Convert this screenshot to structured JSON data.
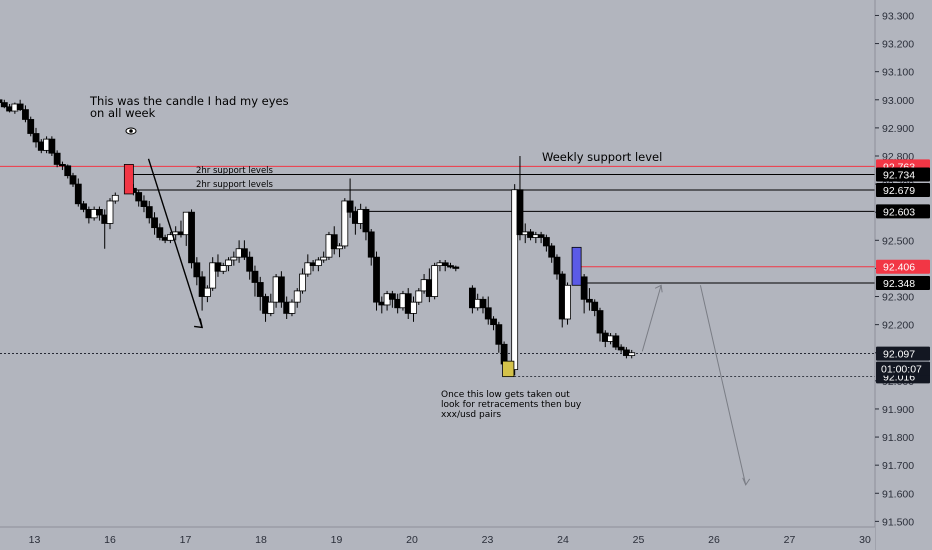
{
  "chart_data": {
    "type": "candlestick",
    "y_ticks": [
      "93.300",
      "93.200",
      "93.100",
      "93.000",
      "92.900",
      "92.800",
      "92.700",
      "92.600",
      "92.500",
      "92.400",
      "92.300",
      "92.200",
      "92.100",
      "92.000",
      "91.900",
      "91.800",
      "91.700",
      "91.600",
      "91.500"
    ],
    "y_tick_values": [
      93.3,
      93.2,
      93.1,
      93.0,
      92.9,
      92.8,
      92.7,
      92.6,
      92.5,
      92.4,
      92.3,
      92.2,
      92.1,
      92.0,
      91.9,
      91.8,
      91.7,
      91.6,
      91.5
    ],
    "ylim": [
      91.48,
      93.355
    ],
    "x_ticks": [
      "13",
      "16",
      "17",
      "18",
      "19",
      "20",
      "23",
      "24",
      "25",
      "26",
      "27",
      "30"
    ],
    "x_tick_values": [
      -1.0,
      0,
      1,
      2,
      3,
      4,
      5,
      6,
      7,
      8,
      9,
      10
    ],
    "xlim": [
      -1.5,
      10.1
    ],
    "candles": [
      [
        -1.47,
        93.0,
        93.02,
        92.985,
        92.99
      ],
      [
        -1.4,
        92.99,
        93.0,
        92.97,
        92.975
      ],
      [
        -1.33,
        92.975,
        92.985,
        92.955,
        92.96
      ],
      [
        -1.26,
        92.96,
        92.99,
        92.95,
        92.985
      ],
      [
        -1.19,
        92.985,
        93.0,
        92.96,
        92.965
      ],
      [
        -1.12,
        92.965,
        92.98,
        92.92,
        92.93
      ],
      [
        -1.05,
        92.93,
        92.94,
        92.87,
        92.88
      ],
      [
        -0.98,
        92.88,
        92.9,
        92.83,
        92.85
      ],
      [
        -0.91,
        92.85,
        92.86,
        92.81,
        92.82
      ],
      [
        -0.84,
        92.82,
        92.87,
        92.81,
        92.86
      ],
      [
        -0.77,
        92.86,
        92.87,
        92.8,
        92.81
      ],
      [
        -0.7,
        92.81,
        92.82,
        92.76,
        92.77
      ],
      [
        -0.63,
        92.77,
        92.78,
        92.75,
        92.765
      ],
      [
        -0.56,
        92.765,
        92.77,
        92.72,
        92.73
      ],
      [
        -0.49,
        92.73,
        92.74,
        92.69,
        92.7
      ],
      [
        -0.42,
        92.7,
        92.72,
        92.62,
        92.63
      ],
      [
        -0.35,
        92.63,
        92.64,
        92.6,
        92.61
      ],
      [
        -0.28,
        92.61,
        92.62,
        92.56,
        92.58
      ],
      [
        -0.21,
        92.58,
        92.62,
        92.57,
        92.61
      ],
      [
        -0.14,
        92.61,
        92.62,
        92.57,
        92.59
      ],
      [
        -0.07,
        92.59,
        92.61,
        92.47,
        92.56
      ],
      [
        0.0,
        92.56,
        92.65,
        92.54,
        92.64
      ],
      [
        0.07,
        92.64,
        92.67,
        92.63,
        92.66
      ],
      [
        0.24,
        92.685,
        92.765,
        92.67,
        92.765
      ],
      [
        0.31,
        92.685,
        92.7,
        92.66,
        92.67
      ],
      [
        0.38,
        92.67,
        92.68,
        92.62,
        92.64
      ],
      [
        0.45,
        92.64,
        92.66,
        92.6,
        92.62
      ],
      [
        0.52,
        92.62,
        92.64,
        92.56,
        92.58
      ],
      [
        0.59,
        92.58,
        92.6,
        92.52,
        92.545
      ],
      [
        0.66,
        92.545,
        92.56,
        92.5,
        92.51
      ],
      [
        0.73,
        92.51,
        92.52,
        92.49,
        92.5
      ],
      [
        0.8,
        92.5,
        92.53,
        92.49,
        92.52
      ],
      [
        0.87,
        92.52,
        92.55,
        92.5,
        92.53
      ],
      [
        0.94,
        92.53,
        92.57,
        92.51,
        92.52
      ],
      [
        1.01,
        92.52,
        92.6,
        92.48,
        92.6
      ],
      [
        1.08,
        92.6,
        92.61,
        92.4,
        92.42
      ],
      [
        1.15,
        92.42,
        92.44,
        92.34,
        92.37
      ],
      [
        1.22,
        92.37,
        92.39,
        92.25,
        92.3
      ],
      [
        1.29,
        92.3,
        92.34,
        92.28,
        92.33
      ],
      [
        1.36,
        92.33,
        92.44,
        92.32,
        92.42
      ],
      [
        1.43,
        92.42,
        92.45,
        92.37,
        92.39
      ],
      [
        1.5,
        92.39,
        92.42,
        92.38,
        92.41
      ],
      [
        1.57,
        92.41,
        92.44,
        92.39,
        92.43
      ],
      [
        1.64,
        92.43,
        92.46,
        92.41,
        92.44
      ],
      [
        1.71,
        92.44,
        92.5,
        92.42,
        92.47
      ],
      [
        1.78,
        92.47,
        92.5,
        92.43,
        92.44
      ],
      [
        1.85,
        92.44,
        92.46,
        92.36,
        92.39
      ],
      [
        1.92,
        92.39,
        92.41,
        92.3,
        92.35
      ],
      [
        1.99,
        92.35,
        92.37,
        92.25,
        92.3
      ],
      [
        2.06,
        92.3,
        92.31,
        92.21,
        92.24
      ],
      [
        2.13,
        92.24,
        92.31,
        92.23,
        92.28
      ],
      [
        2.2,
        92.28,
        92.38,
        92.26,
        92.37
      ],
      [
        2.27,
        92.37,
        92.39,
        92.26,
        92.28
      ],
      [
        2.34,
        92.28,
        92.3,
        92.22,
        92.24
      ],
      [
        2.41,
        92.24,
        92.29,
        92.23,
        92.28
      ],
      [
        2.48,
        92.28,
        92.33,
        92.26,
        92.32
      ],
      [
        2.55,
        92.32,
        92.4,
        92.31,
        92.38
      ],
      [
        2.62,
        92.38,
        92.45,
        92.37,
        92.42
      ],
      [
        2.69,
        92.42,
        92.43,
        92.39,
        92.41
      ],
      [
        2.76,
        92.41,
        92.44,
        92.39,
        92.43
      ],
      [
        2.83,
        92.43,
        92.46,
        92.42,
        92.44
      ],
      [
        2.9,
        92.44,
        92.53,
        92.43,
        92.52
      ],
      [
        2.97,
        92.52,
        92.55,
        92.45,
        92.47
      ],
      [
        3.04,
        92.47,
        92.49,
        92.44,
        92.48
      ],
      [
        3.11,
        92.48,
        92.65,
        92.47,
        92.64
      ],
      [
        3.18,
        92.64,
        92.72,
        92.58,
        92.6
      ],
      [
        3.25,
        92.6,
        92.62,
        92.52,
        92.56
      ],
      [
        3.32,
        92.56,
        92.63,
        92.54,
        92.61
      ],
      [
        3.39,
        92.61,
        92.62,
        92.5,
        92.53
      ],
      [
        3.46,
        92.53,
        92.54,
        92.41,
        92.44
      ],
      [
        3.53,
        92.44,
        92.46,
        92.25,
        92.28
      ],
      [
        3.6,
        92.28,
        92.3,
        92.24,
        92.27
      ],
      [
        3.67,
        92.27,
        92.32,
        92.25,
        92.31
      ],
      [
        3.74,
        92.31,
        92.32,
        92.26,
        92.29
      ],
      [
        3.81,
        92.29,
        92.31,
        92.24,
        92.26
      ],
      [
        3.88,
        92.26,
        92.32,
        92.25,
        92.31
      ],
      [
        3.95,
        92.31,
        92.33,
        92.22,
        92.24
      ],
      [
        4.02,
        92.24,
        92.3,
        92.21,
        92.28
      ],
      [
        4.09,
        92.28,
        92.33,
        92.27,
        92.32
      ],
      [
        4.16,
        92.32,
        92.38,
        92.31,
        92.36
      ],
      [
        4.23,
        92.36,
        92.4,
        92.28,
        92.3
      ],
      [
        4.3,
        92.3,
        92.42,
        92.29,
        92.41
      ],
      [
        4.37,
        92.41,
        92.43,
        92.39,
        92.42
      ],
      [
        4.44,
        92.42,
        92.43,
        92.39,
        92.41
      ],
      [
        4.51,
        92.41,
        92.42,
        92.4,
        92.405
      ],
      [
        4.58,
        92.405,
        92.41,
        92.39,
        92.4
      ],
      [
        4.8,
        92.33,
        92.34,
        92.24,
        92.26
      ],
      [
        4.87,
        92.26,
        92.31,
        92.25,
        92.29
      ],
      [
        4.94,
        92.29,
        92.3,
        92.24,
        92.26
      ],
      [
        5.01,
        92.26,
        92.3,
        92.2,
        92.22
      ],
      [
        5.08,
        92.22,
        92.23,
        92.18,
        92.2
      ],
      [
        5.15,
        92.2,
        92.21,
        92.1,
        92.13
      ],
      [
        5.22,
        92.13,
        92.14,
        92.04,
        92.06
      ],
      [
        5.29,
        92.06,
        92.07,
        92.02,
        92.04
      ],
      [
        5.36,
        92.04,
        92.7,
        92.02,
        92.68
      ],
      [
        5.43,
        92.68,
        92.8,
        92.5,
        92.52
      ],
      [
        5.5,
        92.52,
        92.56,
        92.49,
        92.53
      ],
      [
        5.57,
        92.53,
        92.54,
        92.5,
        92.51
      ],
      [
        5.64,
        92.51,
        92.53,
        92.49,
        92.52
      ],
      [
        5.71,
        92.52,
        92.53,
        92.49,
        92.51
      ],
      [
        5.78,
        92.51,
        92.52,
        92.46,
        92.48
      ],
      [
        5.85,
        92.48,
        92.49,
        92.42,
        92.44
      ],
      [
        5.92,
        92.44,
        92.45,
        92.36,
        92.38
      ],
      [
        5.99,
        92.38,
        92.39,
        92.19,
        92.22
      ],
      [
        6.06,
        92.22,
        92.35,
        92.2,
        92.34
      ],
      [
        6.18,
        92.35,
        92.465,
        92.34,
        92.465
      ],
      [
        6.28,
        92.37,
        92.38,
        92.24,
        92.29
      ],
      [
        6.35,
        92.29,
        92.33,
        92.25,
        92.28
      ],
      [
        6.42,
        92.28,
        92.29,
        92.23,
        92.25
      ],
      [
        6.49,
        92.25,
        92.26,
        92.14,
        92.17
      ],
      [
        6.56,
        92.17,
        92.18,
        92.12,
        92.14
      ],
      [
        6.63,
        92.14,
        92.17,
        92.13,
        92.16
      ],
      [
        6.7,
        92.16,
        92.17,
        92.11,
        92.12
      ],
      [
        6.77,
        92.12,
        92.13,
        92.1,
        92.11
      ],
      [
        6.84,
        92.11,
        92.12,
        92.08,
        92.09
      ],
      [
        6.91,
        92.09,
        92.11,
        92.08,
        92.1
      ]
    ],
    "highlight_bands": [
      [
        -0.28,
        -0.02
      ],
      [
        4.72,
        4.98
      ]
    ],
    "horizontal_lines": [
      {
        "value": 92.763,
        "label": "92.763",
        "color": "#f23645"
      },
      {
        "value": 92.734,
        "label": "92.734",
        "color": "#000000"
      },
      {
        "value": 92.679,
        "label": "92.679",
        "color": "#000000"
      },
      {
        "value": 92.603,
        "label": "92.603",
        "color": "#000000"
      },
      {
        "value": 92.406,
        "label": "92.406",
        "color": "#f23645"
      },
      {
        "value": 92.348,
        "label": "92.348",
        "color": "#000000"
      },
      {
        "value": 92.097,
        "label": "92.097",
        "color": "#131722"
      },
      {
        "value": 92.016,
        "label": "92.016",
        "color": "#131722"
      }
    ],
    "countdown": "01:00:07",
    "colors": {
      "bull": "#ffffff",
      "bear": "#000000",
      "red_box": "#f23645",
      "blue_box": "#5b5be6",
      "band": "#d4c24a",
      "background": "#b2b5be"
    },
    "annotations": {
      "candle_note_1": "This was the candle I had my eyes",
      "candle_note_2": "on all week",
      "support_2hr_a": "2hr support levels",
      "support_2hr_b": "2hr support levels",
      "weekly": "Weekly support level",
      "low_note_1": "Once this low gets taken out",
      "low_note_2": "look for retracements then buy",
      "low_note_3": "xxx/usd pairs",
      "eye_icon": "eye-icon"
    }
  }
}
